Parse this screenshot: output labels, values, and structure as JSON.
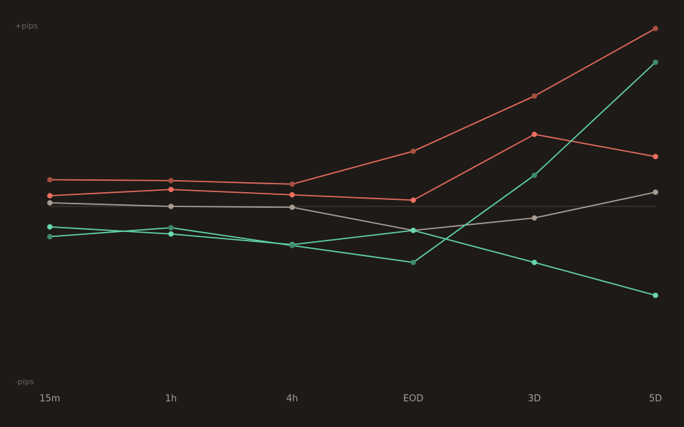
{
  "chart_data": {
    "type": "line",
    "categories": [
      "15m",
      "1h",
      "4h",
      "EOD",
      "3D",
      "5D"
    ],
    "ylabel_top": "+pips",
    "ylabel_bottom": "-pips",
    "ylim": [
      -100,
      100
    ],
    "baseline": 0,
    "grid": false,
    "series": [
      {
        "color": "#a65040",
        "values": [
          15,
          14.5,
          12.5,
          31,
          62,
          100
        ]
      },
      {
        "color": "#ec6f61",
        "values": [
          6,
          9.5,
          6.5,
          3.5,
          40.5,
          28
        ]
      },
      {
        "color": "#a79d94",
        "values": [
          2,
          0,
          -0.5,
          -13.5,
          -6.5,
          8
        ]
      },
      {
        "color": "#69d8ae",
        "values": [
          -11.5,
          -15.5,
          -21.5,
          -13.5,
          -31.5,
          -50
        ]
      },
      {
        "color": "#3e8a6b",
        "values": [
          -17,
          -12,
          -22,
          -31.5,
          17.5,
          81
        ]
      }
    ],
    "line_color": "#e26a5c",
    "line_color_2": "#5fd0a8",
    "baseline_color": "#3a3430",
    "label_color": "#6e6660",
    "tick_color": "#a39b94"
  }
}
